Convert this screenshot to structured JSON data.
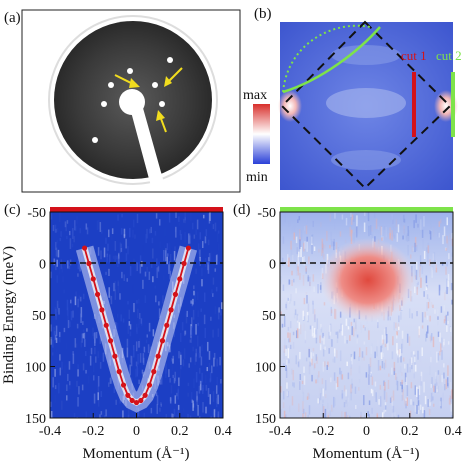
{
  "figure": {
    "colors": {
      "cut1": "#d4121a",
      "cut2": "#7ee34a",
      "arrow": "#f2dd1e",
      "spectrum_blue": "#1c3fc4",
      "cbar_max": "#d8302c",
      "cbar_min": "#2a40d8"
    },
    "panels": {
      "a": {
        "label": "(a)",
        "description_icon": "leed-diffraction-pattern"
      },
      "b": {
        "label": "(b)",
        "cut1_label": "cut 1",
        "cut2_label": "cut 2",
        "colorbar_max": "max",
        "colorbar_min": "min"
      },
      "c": {
        "label": "(c)",
        "ylabel": "Binding Energy (meV)",
        "xlabel": "Momentum (Å⁻¹)",
        "xticks": [
          "-0.4",
          "-0.2",
          "0",
          "0.2",
          "0.4"
        ],
        "yticks": [
          "-50",
          "0",
          "50",
          "100",
          "150"
        ]
      },
      "d": {
        "label": "(d)",
        "xlabel": "Momentum (Å⁻¹)",
        "xticks": [
          "-0.4",
          "-0.2",
          "0",
          "0.2",
          "0.4"
        ],
        "yticks": [
          "-50",
          "0",
          "50",
          "100",
          "150"
        ]
      }
    }
  },
  "chart_data": [
    {
      "type": "heatmap",
      "panel": "c",
      "xlabel": "Momentum (Å⁻¹)",
      "ylabel": "Binding Energy (meV)",
      "xlim": [
        -0.4,
        0.4
      ],
      "ylim": [
        150,
        -50
      ],
      "fermi_level": 0,
      "dispersion_points": {
        "x": [
          -0.24,
          -0.22,
          -0.2,
          -0.18,
          -0.16,
          -0.14,
          -0.12,
          -0.1,
          -0.08,
          -0.06,
          -0.04,
          -0.02,
          0.0,
          0.02,
          0.04,
          0.06,
          0.08,
          0.1,
          0.12,
          0.14,
          0.16,
          0.18,
          0.2,
          0.22,
          0.24
        ],
        "y": [
          -15,
          0,
          15,
          30,
          45,
          60,
          75,
          90,
          105,
          118,
          128,
          133,
          135,
          133,
          128,
          118,
          105,
          90,
          75,
          60,
          45,
          30,
          15,
          0,
          -15
        ]
      }
    },
    {
      "type": "heatmap",
      "panel": "d",
      "xlabel": "Momentum (Å⁻¹)",
      "xlim": [
        -0.4,
        0.4
      ],
      "ylim": [
        150,
        -50
      ],
      "fermi_level": 0
    }
  ]
}
